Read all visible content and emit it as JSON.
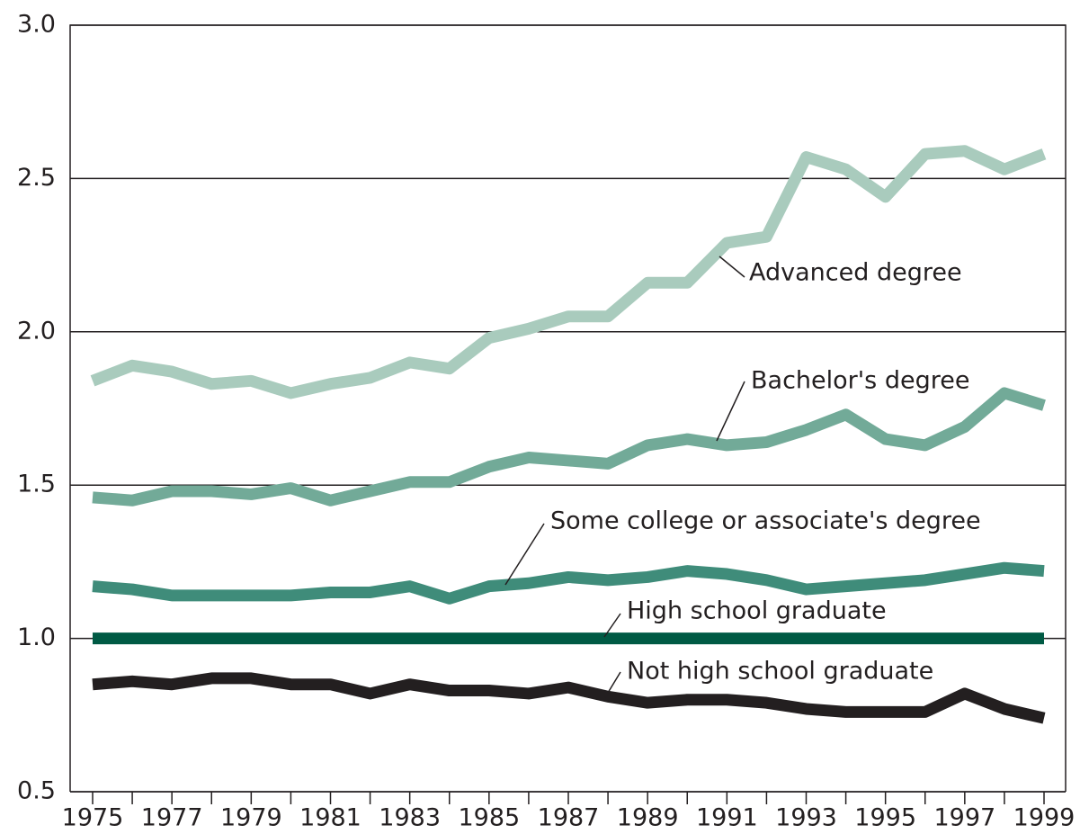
{
  "chart_data": {
    "type": "line",
    "x": [
      1975,
      1976,
      1977,
      1978,
      1979,
      1980,
      1981,
      1982,
      1983,
      1984,
      1985,
      1986,
      1987,
      1988,
      1989,
      1990,
      1991,
      1992,
      1993,
      1994,
      1995,
      1996,
      1997,
      1998,
      1999
    ],
    "series": [
      {
        "name": "Advanced degree",
        "color": "#a9cbbd",
        "values": [
          1.84,
          1.89,
          1.87,
          1.83,
          1.84,
          1.8,
          1.83,
          1.85,
          1.9,
          1.88,
          1.98,
          2.01,
          2.05,
          2.05,
          2.16,
          2.16,
          2.29,
          2.31,
          2.57,
          2.53,
          2.44,
          2.58,
          2.59,
          2.53,
          2.58
        ]
      },
      {
        "name": "Bachelor's degree",
        "color": "#72aa98",
        "values": [
          1.46,
          1.45,
          1.48,
          1.48,
          1.47,
          1.49,
          1.45,
          1.48,
          1.51,
          1.51,
          1.56,
          1.59,
          1.58,
          1.57,
          1.63,
          1.65,
          1.63,
          1.64,
          1.68,
          1.73,
          1.65,
          1.63,
          1.69,
          1.8,
          1.76
        ]
      },
      {
        "name": "Some college or associate's degree",
        "color": "#3f8c7a",
        "values": [
          1.17,
          1.16,
          1.14,
          1.14,
          1.14,
          1.14,
          1.15,
          1.15,
          1.17,
          1.13,
          1.17,
          1.18,
          1.2,
          1.19,
          1.2,
          1.22,
          1.21,
          1.19,
          1.16,
          1.17,
          1.18,
          1.19,
          1.21,
          1.23,
          1.22
        ]
      },
      {
        "name": "High school graduate",
        "color": "#005a44",
        "values": [
          1.0,
          1.0,
          1.0,
          1.0,
          1.0,
          1.0,
          1.0,
          1.0,
          1.0,
          1.0,
          1.0,
          1.0,
          1.0,
          1.0,
          1.0,
          1.0,
          1.0,
          1.0,
          1.0,
          1.0,
          1.0,
          1.0,
          1.0,
          1.0,
          1.0
        ]
      },
      {
        "name": "Not high school graduate",
        "color": "#231f20",
        "values": [
          0.85,
          0.86,
          0.85,
          0.87,
          0.87,
          0.85,
          0.85,
          0.82,
          0.85,
          0.83,
          0.83,
          0.82,
          0.84,
          0.81,
          0.79,
          0.8,
          0.8,
          0.79,
          0.77,
          0.76,
          0.76,
          0.76,
          0.82,
          0.77,
          0.74
        ]
      }
    ],
    "xlim": [
      1975,
      1999
    ],
    "xticks": [
      1975,
      1977,
      1979,
      1981,
      1983,
      1985,
      1987,
      1989,
      1991,
      1993,
      1995,
      1997,
      1999
    ],
    "ylim": [
      0.5,
      3.0
    ],
    "yticks": [
      {
        "value": 0.5,
        "label": "0.5"
      },
      {
        "value": 1.0,
        "label": "1.0"
      },
      {
        "value": 1.5,
        "label": "1.5"
      },
      {
        "value": 2.0,
        "label": "2.0"
      },
      {
        "value": 2.5,
        "label": "2.5"
      },
      {
        "value": 3.0,
        "label": "3.0"
      }
    ],
    "grid": true
  }
}
